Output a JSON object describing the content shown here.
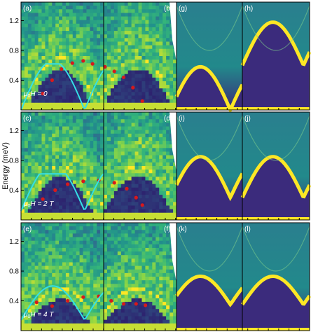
{
  "figure": {
    "ylabel": "Energy (meV)",
    "yticks": [
      "1.2",
      "0.8",
      "0.4"
    ]
  },
  "rows": [
    {
      "field_label": "μ₀H = 0",
      "field_label_italic_prefix": "μ",
      "sub": "0",
      "rest": "H = 0"
    },
    {
      "field_label": "μ₀H = 2 T",
      "field_label_italic_prefix": "μ",
      "sub": "0",
      "rest": "H = 2 T"
    },
    {
      "field_label": "μ₀H = 4 T",
      "field_label_italic_prefix": "μ",
      "sub": "0",
      "rest": "H = 4 T"
    }
  ],
  "panel_letters": [
    [
      "(a)",
      "(b)",
      "(g)",
      "(h)"
    ],
    [
      "(c)",
      "(d)",
      "(i)",
      "(j)"
    ],
    [
      "(e)",
      "(f)",
      "(k)",
      "(l)"
    ]
  ],
  "colors": {
    "map_low": "#2c1b6b",
    "map_mid": "#1f8f8a",
    "map_high": "#fde725",
    "dispersion_dots": "#d7191c",
    "model_curve": "#34e0e6",
    "label_text": "#ffffff"
  },
  "chart_data": [
    {
      "type": "heatmap",
      "panel": "(a)/(b) experiment",
      "ylabel": "Energy (meV)",
      "ylim": [
        0,
        1.45
      ],
      "yticks": [
        0.4,
        0.8,
        1.2
      ],
      "field_T": 0,
      "series": [
        {
          "values": [
            [
              0.14,
              0.22
            ],
            [
              0.2,
              0.4
            ],
            [
              0.26,
              0.55
            ],
            [
              0.33,
              0.63
            ],
            [
              0.4,
              0.66
            ],
            [
              0.46,
              0.62
            ],
            [
              0.54,
              0.58
            ],
            [
              0.6,
              0.52
            ],
            [
              0.66,
              0.44
            ],
            [
              0.72,
              0.3
            ],
            [
              0.78,
              0.12
            ]
          ]
        }
      ]
    },
    {
      "type": "heatmap",
      "panel": "(c)/(d) experiment",
      "ylabel": "Energy (meV)",
      "ylim": [
        0,
        1.45
      ],
      "yticks": [
        0.4,
        0.8,
        1.2
      ],
      "field_T": 2,
      "series": [
        {
          "values": [
            [
              0.14,
              0.28
            ],
            [
              0.22,
              0.4
            ],
            [
              0.3,
              0.48
            ],
            [
              0.4,
              0.52
            ],
            [
              0.5,
              0.53
            ],
            [
              0.6,
              0.5
            ],
            [
              0.68,
              0.42
            ],
            [
              0.74,
              0.3
            ],
            [
              0.78,
              0.2
            ]
          ]
        }
      ]
    },
    {
      "type": "heatmap",
      "panel": "(e)/(f) experiment",
      "ylabel": "Energy (meV)",
      "ylim": [
        0,
        1.45
      ],
      "yticks": [
        0.4,
        0.8,
        1.2
      ],
      "field_T": 4,
      "series": [
        {
          "values": [
            [
              0.1,
              0.38
            ],
            [
              0.2,
              0.33
            ],
            [
              0.3,
              0.4
            ],
            [
              0.4,
              0.45
            ],
            [
              0.5,
              0.46
            ],
            [
              0.58,
              0.4
            ],
            [
              0.66,
              0.36
            ],
            [
              0.74,
              0.36
            ],
            [
              0.8,
              0.34
            ]
          ]
        }
      ]
    },
    {
      "type": "heatmap",
      "panel": "(g)-(l) model",
      "ylim": [
        0,
        1.45
      ],
      "zero_mode_gap_meV": [
        0.0,
        0.3,
        0.35
      ],
      "bandwidth_meV": [
        0.58,
        0.55,
        0.38
      ]
    }
  ]
}
